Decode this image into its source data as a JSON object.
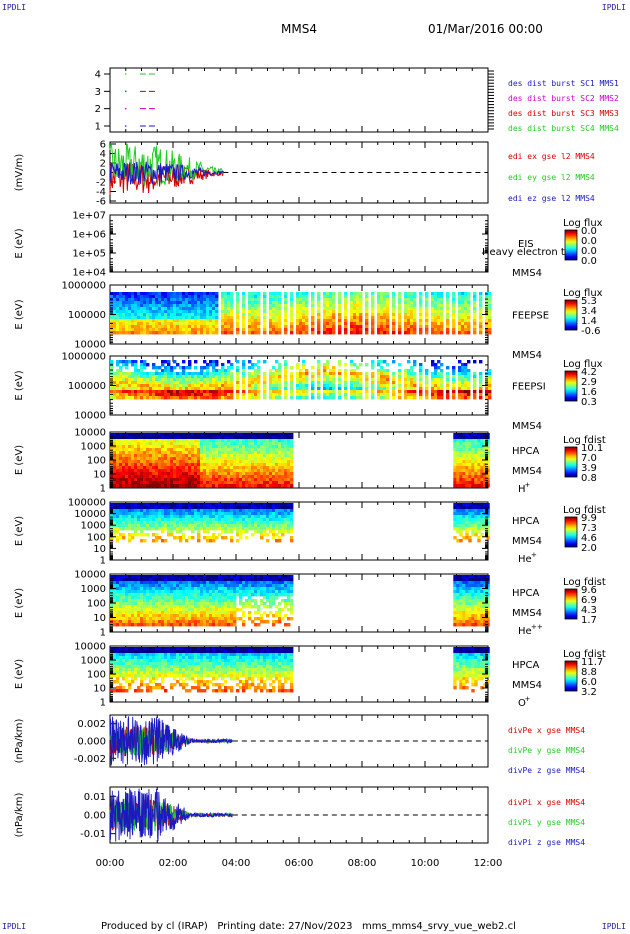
{
  "corners": {
    "top_left": "IPDLI",
    "top_right": "IPDLI",
    "bottom_left": "IPDLI",
    "bottom_right": "IPDLI"
  },
  "header": {
    "spacecraft": "MMS4",
    "date": "01/Mar/2016 00:00"
  },
  "footer": {
    "text": "Produced by cl (IRAP)   Printing date: 27/Nov/2023   mms_mms4_srvy_vue_web2.cl"
  },
  "time_axis": {
    "ticks": [
      "00:00",
      "02:00",
      "04:00",
      "06:00",
      "08:00",
      "10:00",
      "12:00"
    ]
  },
  "colors": {
    "red": "#d40000",
    "magenta": "#cc00cc",
    "green": "#22cc22",
    "blue": "#1a1ac0"
  },
  "chart_data": [
    {
      "type": "line",
      "name": "burst",
      "ylabel": "",
      "ylim": [
        0.5,
        4.5
      ],
      "y_ticks": [
        "4",
        "3",
        "2",
        "1"
      ],
      "legend": [
        "des dist burst SC1 MMS1",
        "des dist burst SC2 MMS2",
        "des dist burst SC3 MMS3",
        "des dist burst SC4 MMS4"
      ],
      "series": [
        {
          "name": "des dist burst SC1 MMS1",
          "y": 4,
          "segments": [
            [
              0.95,
              1.5
            ]
          ]
        },
        {
          "name": "des dist burst SC2 MMS2",
          "y": 3,
          "segments": [
            [
              0.95,
              1.5
            ]
          ]
        },
        {
          "name": "des dist burst SC3 MMS3",
          "y": 2,
          "segments": [
            [
              0.95,
              1.5
            ]
          ]
        },
        {
          "name": "des dist burst SC4 MMS4",
          "y": 1,
          "segments": [
            [
              0.95,
              1.5
            ]
          ]
        }
      ]
    },
    {
      "type": "line",
      "name": "edi",
      "ylabel": "(mV/m)",
      "ylim": [
        -6,
        6
      ],
      "y_ticks": [
        "6",
        "4",
        "2",
        "0",
        "-2",
        "-4",
        "-6"
      ],
      "legend": [
        "edi ex gse l2 MMS4",
        "edi ey gse l2 MMS4",
        "edi ez gse l2 MMS4"
      ],
      "x_end": 3.6
    },
    {
      "type": "heatmap",
      "name": "EIS",
      "ylabel": "E (eV)",
      "y_ticks": [
        "1e+07",
        "1e+06",
        "1e+05",
        "1e+04"
      ],
      "instrument": "EIS",
      "sc": "MMS4",
      "species": "",
      "overlay": "Heavy electron to",
      "cbar_title": "Log flux",
      "cbar_ticks": [
        "0.0",
        "0.0",
        "0.0",
        "0.0"
      ]
    },
    {
      "type": "heatmap",
      "name": "FEEPSE",
      "ylabel": "E (eV)",
      "y_ticks": [
        "1000000",
        "100000",
        "10000"
      ],
      "instrument": "FEEPSE",
      "sc": "MMS4",
      "species": "",
      "cbar_title": "Log flux",
      "cbar_ticks": [
        "5.3",
        "3.4",
        "1.4",
        "-0.6"
      ],
      "x_range": [
        0,
        12
      ]
    },
    {
      "type": "heatmap",
      "name": "FEEPSI",
      "ylabel": "E (eV)",
      "y_ticks": [
        "1000000",
        "100000",
        "10000"
      ],
      "instrument": "FEEPSI",
      "sc": "MMS4",
      "species": "",
      "cbar_title": "Log flux",
      "cbar_ticks": [
        "4.2",
        "2.9",
        "1.6",
        "0.3"
      ],
      "x_range": [
        0,
        12
      ]
    },
    {
      "type": "heatmap",
      "name": "HPCA-H",
      "ylabel": "E (eV)",
      "y_ticks": [
        "10000",
        "1000",
        "100",
        "10",
        "1"
      ],
      "instrument": "HPCA",
      "sc": "MMS4",
      "species": "H",
      "species_sup": "+",
      "cbar_title": "Log fdist",
      "cbar_ticks": [
        "10.1",
        "7.0",
        "3.9",
        "0.8"
      ],
      "x_ranges": [
        [
          0,
          5.75
        ],
        [
          10.9,
          12
        ]
      ]
    },
    {
      "type": "heatmap",
      "name": "HPCA-He",
      "ylabel": "E (eV)",
      "y_ticks": [
        "100000",
        "10000",
        "1000",
        "100",
        "10",
        "1"
      ],
      "instrument": "HPCA",
      "sc": "MMS4",
      "species": "He",
      "species_sup": "+",
      "cbar_title": "Log fdist",
      "cbar_ticks": [
        "9.9",
        "7.3",
        "4.6",
        "2.0"
      ],
      "x_ranges": [
        [
          0,
          5.75
        ],
        [
          10.9,
          12
        ]
      ]
    },
    {
      "type": "heatmap",
      "name": "HPCA-He++",
      "ylabel": "E (eV)",
      "y_ticks": [
        "10000",
        "1000",
        "100",
        "10",
        "1"
      ],
      "instrument": "HPCA",
      "sc": "MMS4",
      "species": "He",
      "species_sup": "++",
      "cbar_title": "Log fdist",
      "cbar_ticks": [
        "9.6",
        "6.9",
        "4.3",
        "1.7"
      ],
      "x_ranges": [
        [
          0,
          5.75
        ],
        [
          10.9,
          12
        ]
      ]
    },
    {
      "type": "heatmap",
      "name": "HPCA-O",
      "ylabel": "E (eV)",
      "y_ticks": [
        "10000",
        "1000",
        "100",
        "10",
        "1"
      ],
      "instrument": "HPCA",
      "sc": "MMS4",
      "species": "O",
      "species_sup": "+",
      "cbar_title": "Log fdist",
      "cbar_ticks": [
        "11.7",
        "8.8",
        "6.0",
        "3.2"
      ],
      "x_ranges": [
        [
          0,
          5.75
        ],
        [
          10.9,
          12
        ]
      ]
    },
    {
      "type": "line",
      "name": "divPe",
      "ylabel": "(nPa/km)",
      "ylim": [
        -0.003,
        0.003
      ],
      "y_ticks": [
        "0.002",
        "0.000",
        "-0.002"
      ],
      "legend": [
        "divPe x gse MMS4",
        "divPe y gse MMS4",
        "divPe z gse MMS4"
      ],
      "x_end": 3.9
    },
    {
      "type": "line",
      "name": "divPi",
      "ylabel": "(nPa/km)",
      "ylim": [
        -0.015,
        0.015
      ],
      "y_ticks": [
        "0.01",
        "0.00",
        "-0.01"
      ],
      "legend": [
        "divPi x gse MMS4",
        "divPi y gse MMS4",
        "divPi z gse MMS4"
      ],
      "x_end": 3.9
    }
  ]
}
